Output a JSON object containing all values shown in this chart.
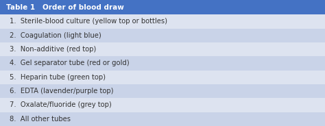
{
  "title": "Table 1   Order of blood draw",
  "title_bg": "#4472c4",
  "title_text_color": "#ffffff",
  "title_fontsize": 7.5,
  "rows": [
    "1.  Sterile-blood culture (yellow top or bottles)",
    "2.  Coagulation (light blue)",
    "3.  Non-additive (red top)",
    "4.  Gel separator tube (red or gold)",
    "5.  Heparin tube (green top)",
    "6.  EDTA (lavender/purple top)",
    "7.  Oxalate/fluoride (grey top)",
    "8.  All other tubes"
  ],
  "row_colors_alt": [
    "#dde3f0",
    "#c9d3e8"
  ],
  "text_color": "#333333",
  "row_fontsize": 7.2,
  "fig_width": 4.74,
  "fig_height": 1.84,
  "dpi": 100
}
